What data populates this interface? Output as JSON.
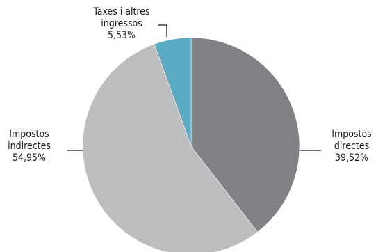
{
  "chart_data": {
    "type": "pie",
    "title": "",
    "start": "top",
    "direction": "clockwise",
    "slices": [
      {
        "lines": [
          "Impostos",
          "directes"
        ],
        "value": 39.52,
        "value_label": "39,52%",
        "color": "#808184"
      },
      {
        "lines": [
          "Impostos",
          "indirectes"
        ],
        "value": 54.95,
        "value_label": "54,95%",
        "color": "#bcbdbf"
      },
      {
        "lines": [
          "Taxes i altres",
          "ingressos"
        ],
        "value": 5.53,
        "value_label": "5,53%",
        "color": "#5aacc4"
      }
    ]
  }
}
